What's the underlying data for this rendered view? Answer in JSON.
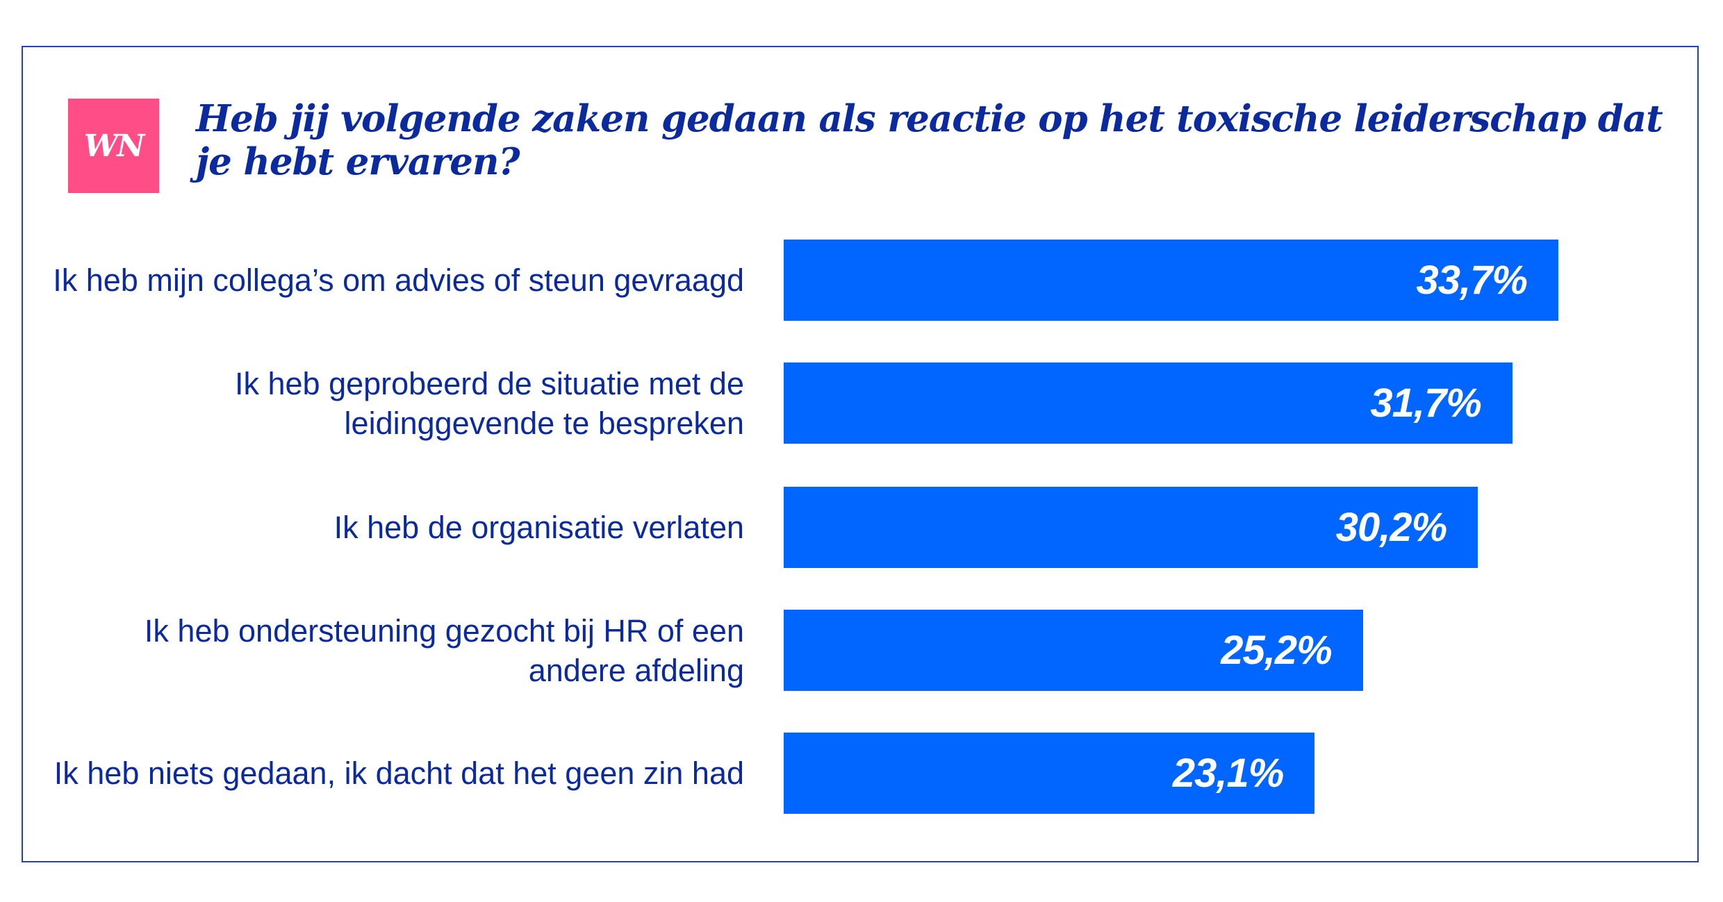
{
  "logo_text": "WN",
  "chart_data": {
    "type": "bar",
    "orientation": "horizontal",
    "title": "Heb jij volgende zaken gedaan als reactie op het toxische leiderschap dat je hebt ervaren?",
    "categories": [
      "Ik heb mijn collega’s om advies of steun gevraagd",
      "Ik heb geprobeerd de situatie met de leidinggevende te bespreken",
      "Ik heb de organisatie verlaten",
      "Ik heb ondersteuning gezocht bij HR of een andere afdeling",
      "Ik heb niets gedaan, ik dacht dat het geen zin had"
    ],
    "values": [
      33.7,
      31.7,
      30.2,
      25.2,
      23.1
    ],
    "value_labels": [
      "33,7%",
      "31,7%",
      "30,2%",
      "25,2%",
      "23,1%"
    ],
    "xlabel": "",
    "ylabel": "",
    "xlim": [
      0,
      33.7
    ],
    "grid": false,
    "colors": {
      "bar": "#0066ff",
      "text": "#0a2a9e",
      "logo": "#ff4d88",
      "border": "#2a3fb4"
    }
  }
}
